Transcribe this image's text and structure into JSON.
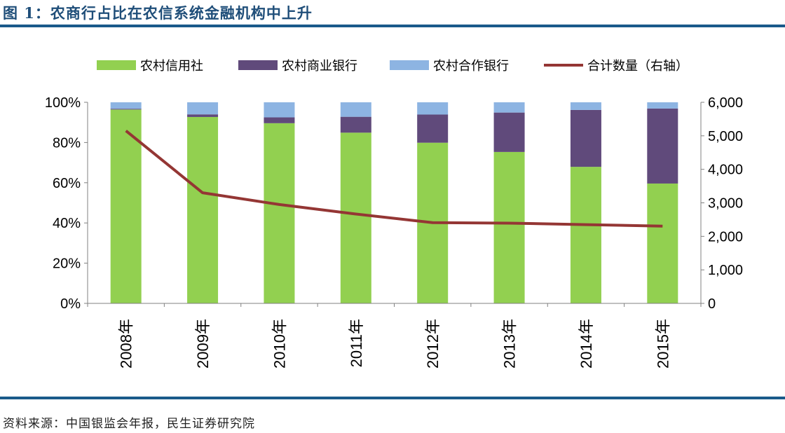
{
  "title": "图 1：农商行占比在农信系统金融机构中上升",
  "source": "资料来源：中国银监会年报，民生证券研究院",
  "chart_data": {
    "type": "bar",
    "stacked": true,
    "categories": [
      "2008年",
      "2009年",
      "2010年",
      "2011年",
      "2012年",
      "2013年",
      "2014年",
      "2015年"
    ],
    "series": [
      {
        "name": "农村信用社",
        "type": "bar",
        "axis": "left",
        "color": "#92d050",
        "values": [
          96.4,
          92.7,
          89.6,
          84.9,
          79.9,
          75.3,
          67.9,
          59.6
        ]
      },
      {
        "name": "农村商业银行",
        "type": "bar",
        "axis": "left",
        "color": "#604a7b",
        "values": [
          0.4,
          1.3,
          2.9,
          7.9,
          14.0,
          19.6,
          28.3,
          37.3
        ]
      },
      {
        "name": "农村合作银行",
        "type": "bar",
        "axis": "left",
        "color": "#8db4e2",
        "values": [
          3.2,
          6.0,
          7.5,
          7.2,
          6.1,
          5.1,
          3.8,
          3.1
        ]
      },
      {
        "name": "合计数量（右轴）",
        "type": "line",
        "axis": "right",
        "color": "#943634",
        "values": [
          5150,
          3300,
          2950,
          2665,
          2410,
          2395,
          2350,
          2305
        ]
      }
    ],
    "y_left": {
      "range": [
        0,
        100
      ],
      "ticks": [
        "0%",
        "20%",
        "40%",
        "60%",
        "80%",
        "100%"
      ]
    },
    "y_right": {
      "range": [
        0,
        6000
      ],
      "ticks": [
        "0",
        "1,000",
        "2,000",
        "3,000",
        "4,000",
        "5,000",
        "6,000"
      ]
    },
    "grid": false,
    "legend": "top"
  }
}
